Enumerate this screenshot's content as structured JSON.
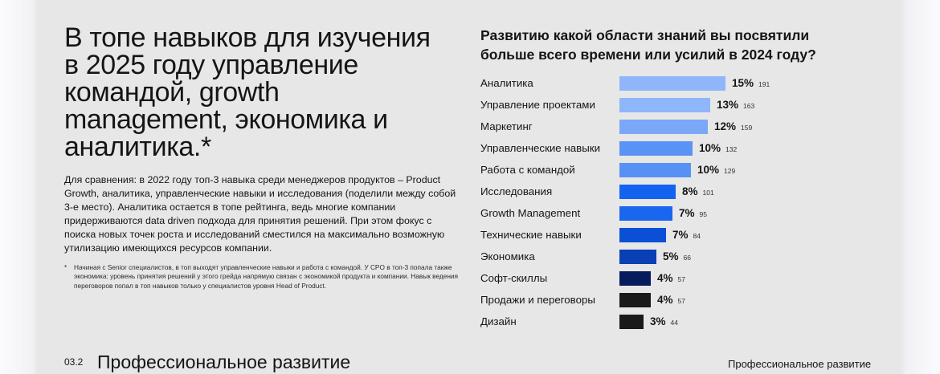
{
  "headline": "В топе навыков для изучения\nв 2025 году управление\nкомандой, growth\nmanagement, экономика и\nаналитика.*",
  "body": "Для сравнения: в 2022 году топ-3 навыка среди менеджеров продуктов – Product Growth, аналитика, управленческие навыки и исследования (поделили между собой 3-е место). Аналитика остается в топе рейтинга, ведь многие компании придерживаются data driven подхода для принятия решений. При этом фокус с поиска новых точек роста и исследований сместился на максимально возможную утилизацию имеющихся ресурсов компании.",
  "footnote": {
    "marker": "*",
    "text": "Начиная с Senior специалистов, в топ выходят управленческие навыки и работа с командой. У CPO в топ-3 попала также экономика: уровень принятия решений у этого грейда напрямую связан с экономикой продукта и компании. Навык ведения переговоров попал в топ навыков только у специалистов уровня Head of Product."
  },
  "footer": {
    "section_number": "03.2",
    "section_title": "Профессиональное развитие",
    "running_title": "Профессиональное развитие"
  },
  "chart_data": {
    "type": "bar",
    "orientation": "horizontal",
    "title": "Развитию какой области знаний вы посвятили\nбольше всего времени или усилий в 2024 году?",
    "xlabel": "",
    "ylabel": "",
    "grid": false,
    "categories": [
      "Аналитика",
      "Управление проектами",
      "Маркетинг",
      "Управленческие навыки",
      "Работа с командой",
      "Исследования",
      "Growth Management",
      "Технические навыки",
      "Экономика",
      "Софт-скиллы",
      "Продажи и переговоры",
      "Дизайн"
    ],
    "values_percent": [
      15,
      13,
      12,
      10,
      10,
      8,
      7,
      7,
      5,
      4,
      4,
      3
    ],
    "counts": [
      191,
      163,
      159,
      132,
      129,
      101,
      95,
      84,
      66,
      57,
      57,
      44
    ],
    "colors": [
      "#8fb6fb",
      "#8fb5fa",
      "#7aa8f7",
      "#5a93f5",
      "#5791f4",
      "#1463f0",
      "#1a66ef",
      "#0b4fd6",
      "#0b3fb5",
      "#071c5c",
      "#1a1a1a",
      "#1a1a1a"
    ],
    "labels": [
      {
        "category": "Аналитика",
        "pct": "15%",
        "count": "191"
      },
      {
        "category": "Управление проектами",
        "pct": "13%",
        "count": "163"
      },
      {
        "category": "Маркетинг",
        "pct": "12%",
        "count": "159"
      },
      {
        "category": "Управленческие навыки",
        "pct": "10%",
        "count": "132"
      },
      {
        "category": "Работа с командой",
        "pct": "10%",
        "count": "129"
      },
      {
        "category": "Исследования",
        "pct": "8%",
        "count": "101"
      },
      {
        "category": "Growth Management",
        "pct": "7%",
        "count": "95"
      },
      {
        "category": "Технические навыки",
        "pct": "7%",
        "count": "84"
      },
      {
        "category": "Экономика",
        "pct": "5%",
        "count": "66"
      },
      {
        "category": "Софт-скиллы",
        "pct": "4%",
        "count": "57"
      },
      {
        "category": "Продажи и переговоры",
        "pct": "4%",
        "count": "57"
      },
      {
        "category": "Дизайн",
        "pct": "3%",
        "count": "44"
      }
    ]
  }
}
